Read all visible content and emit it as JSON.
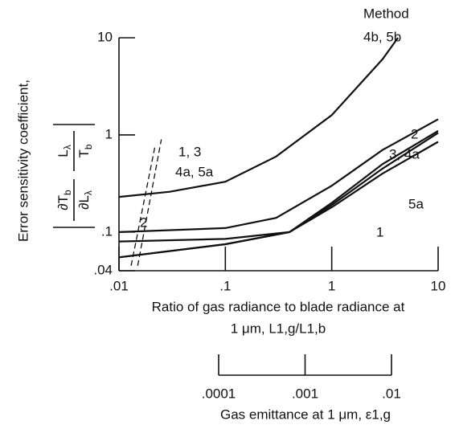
{
  "chart_data": {
    "type": "line",
    "ylabel": "Error sensitivity coefficient,",
    "ylabel_formula": {
      "num1": "∂T",
      "num1_sub": "b",
      "den1": "∂L",
      "den1_sub": "λ",
      "num2": "L",
      "num2_sub": "λ",
      "den2": "T",
      "den2_sub": "b"
    },
    "xlabel": [
      "Ratio of gas radiance to blade radiance at",
      "1 μm, L1,g/L1,b"
    ],
    "x_log": true,
    "y_log": true,
    "xlim": [
      0.01,
      10
    ],
    "ylim": [
      0.04,
      10
    ],
    "xticks": [
      {
        "value": 0.01,
        "label": ".01"
      },
      {
        "value": 0.1,
        "label": ".1"
      },
      1,
      10
    ],
    "yticks": [
      {
        "value": 0.04,
        "label": ".04"
      },
      {
        "value": 0.1,
        "label": ".1"
      },
      1,
      10
    ],
    "x2label": "Gas emittance at 1 μm, ε1,g",
    "x2lim": [
      0.0001,
      0.01
    ],
    "x2ticks": [
      {
        "value": 0.0001,
        "label": ".0001"
      },
      {
        "value": 0.001,
        "label": ".001"
      },
      {
        "value": 0.01,
        "label": ".01"
      }
    ],
    "series": [
      {
        "name": "4b, 5b",
        "color": "#111111",
        "x": [
          0.01,
          0.03,
          0.1,
          0.3,
          1,
          3,
          4.2
        ],
        "values": [
          0.23,
          0.26,
          0.33,
          0.6,
          1.6,
          6,
          10
        ]
      },
      {
        "name": "2",
        "color": "#111111",
        "x": [
          0.01,
          0.1,
          0.3,
          1,
          3,
          10
        ],
        "values": [
          0.1,
          0.11,
          0.14,
          0.3,
          0.7,
          1.45
        ]
      },
      {
        "name": "3, 4a",
        "color": "#111111",
        "x": [
          0.01,
          0.1,
          0.4,
          1,
          3,
          10
        ],
        "values": [
          0.08,
          0.085,
          0.1,
          0.2,
          0.5,
          1.1
        ]
      },
      {
        "name": "5a",
        "color": "#111111",
        "x": [
          0.01,
          0.1,
          0.4,
          1,
          3,
          10
        ],
        "values": [
          0.055,
          0.075,
          0.1,
          0.19,
          0.45,
          1.05
        ]
      },
      {
        "name": "1",
        "color": "#111111",
        "x": [
          0.01,
          0.1,
          0.4,
          1,
          3,
          10
        ],
        "values": [
          0.055,
          0.075,
          0.1,
          0.18,
          0.4,
          0.85
        ]
      },
      {
        "name": "1, 3 / 4a, 5a",
        "color": "#111111",
        "dashed": true,
        "x": [
          0.015,
          0.025
        ],
        "values": [
          0.045,
          0.9
        ]
      },
      {
        "name": "2",
        "color": "#111111",
        "dashed": true,
        "x": [
          0.013,
          0.022
        ],
        "values": [
          0.045,
          0.8
        ]
      }
    ],
    "annotations": [
      "Method",
      "4b, 5b",
      "2",
      "3, 4a",
      "5a",
      "1",
      "1, 3",
      "4a, 5a",
      "2"
    ]
  }
}
